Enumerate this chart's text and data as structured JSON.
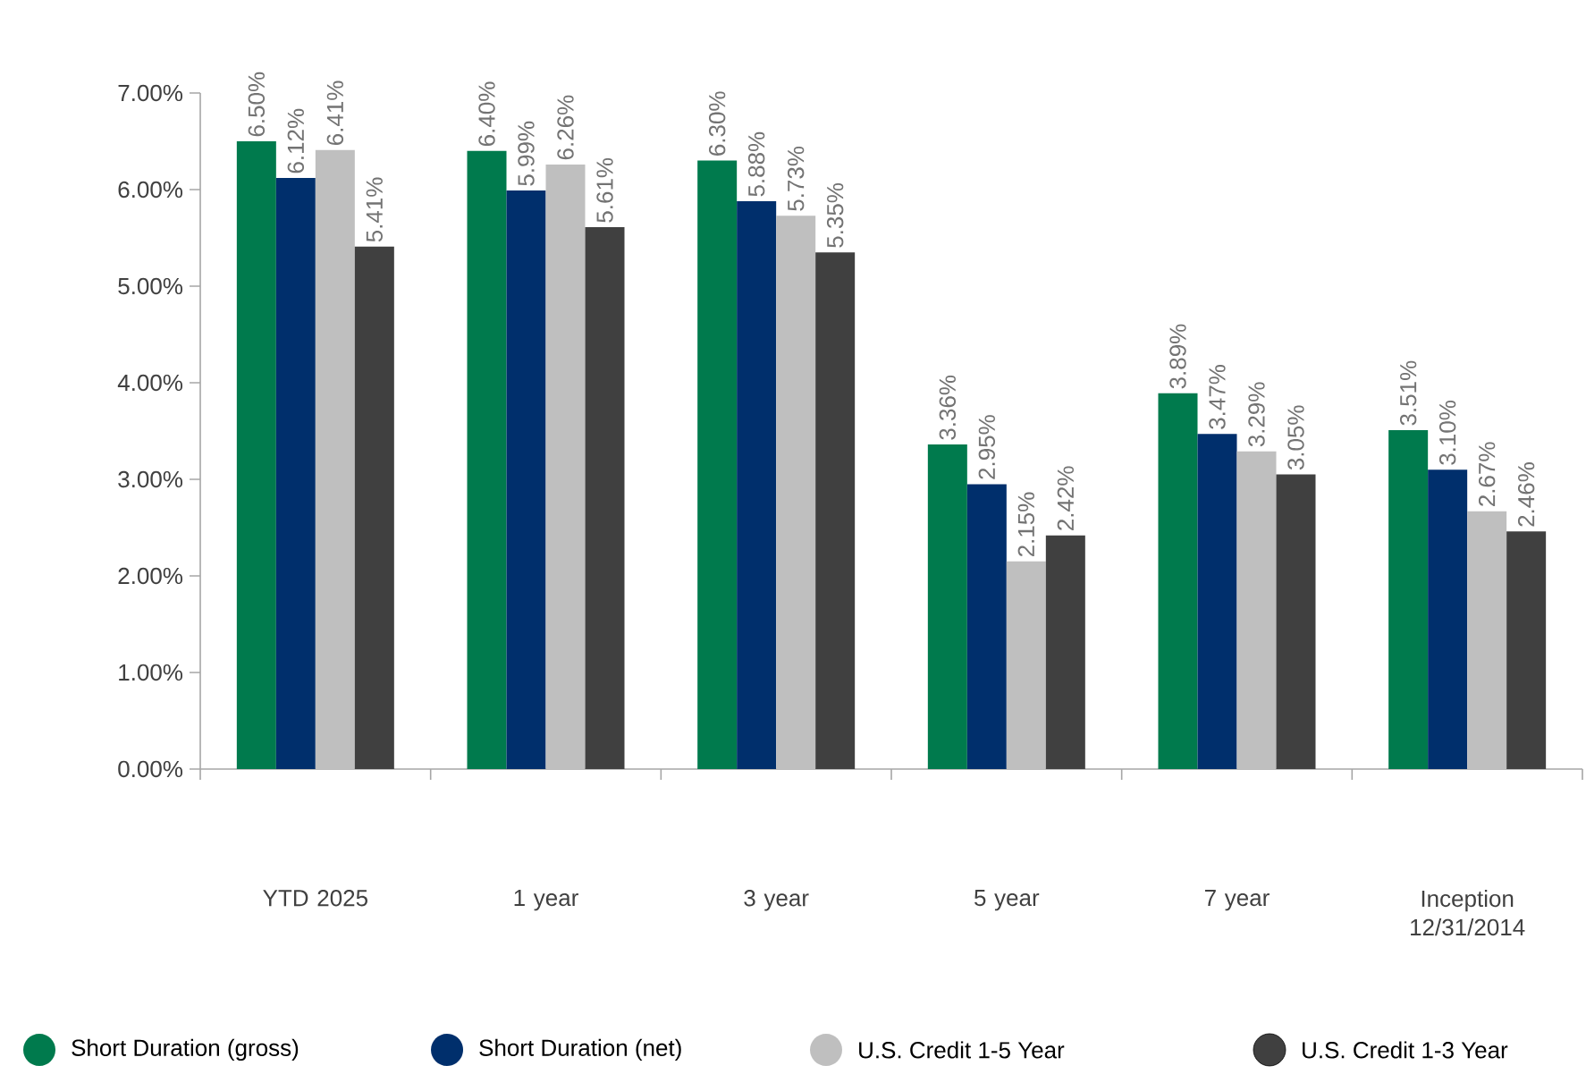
{
  "chart_data": {
    "type": "bar",
    "categories": [
      "YTD 2025",
      "1 year",
      "3 year",
      "5 year",
      "7 year",
      "Inception 12/31/2014"
    ],
    "series": [
      {
        "name": "Short Duration (gross)",
        "color": "#007a4d",
        "values": [
          6.5,
          6.4,
          6.3,
          3.36,
          3.89,
          3.51
        ],
        "value_labels": [
          "6.50%",
          "6.40%",
          "6.30%",
          "3.36%",
          "3.89%",
          "3.51%"
        ]
      },
      {
        "name": "Short Duration (net)",
        "color": "#002f6c",
        "values": [
          6.12,
          5.99,
          5.88,
          2.95,
          3.47,
          3.1
        ],
        "value_labels": [
          "6.12%",
          "5.99%",
          "5.88%",
          "2.95%",
          "3.47%",
          "3.10%"
        ]
      },
      {
        "name": "U.S. Credit 1-5 Year",
        "color": "#bfbfbf",
        "values": [
          6.41,
          6.26,
          5.73,
          2.15,
          3.29,
          2.67
        ],
        "value_labels": [
          "6.41%",
          "6.26%",
          "5.73%",
          "2.15%",
          "3.29%",
          "2.67%"
        ]
      },
      {
        "name": "U.S. Credit 1-3 Year",
        "color": "#404040",
        "values": [
          5.41,
          5.61,
          5.35,
          2.42,
          3.05,
          2.46
        ],
        "value_labels": [
          "5.41%",
          "5.61%",
          "5.35%",
          "2.42%",
          "3.05%",
          "2.46%"
        ]
      }
    ],
    "ylim": [
      0,
      7
    ],
    "yticks": [
      {
        "value": 0,
        "label": "0.00%"
      },
      {
        "value": 1,
        "label": "1.00%"
      },
      {
        "value": 2,
        "label": "2.00%"
      },
      {
        "value": 3,
        "label": "3.00%"
      },
      {
        "value": 4,
        "label": "4.00%"
      },
      {
        "value": 5,
        "label": "5.00%"
      },
      {
        "value": 6,
        "label": "6.00%"
      },
      {
        "value": 7,
        "label": "7.00%"
      }
    ],
    "legend": "bottom",
    "marker": "circle"
  }
}
